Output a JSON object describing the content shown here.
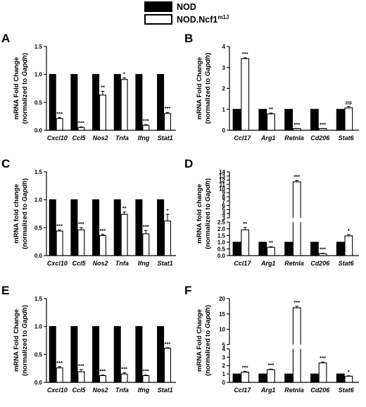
{
  "legend": {
    "items": [
      {
        "label": "NOD",
        "sup": "",
        "fill": "#000000"
      },
      {
        "label": "NOD.Ncf1",
        "sup": "m1J",
        "fill": "#ffffff"
      }
    ]
  },
  "colors": {
    "control": "#000000",
    "mutant": "#ffffff",
    "stroke": "#000000"
  },
  "chart_data": [
    {
      "panel": "A",
      "type": "bar",
      "ylabel": [
        "mRNA Fold Change",
        "(normalized to ",
        "Gapdh",
        ")"
      ],
      "categories": [
        "Cxcl10",
        "Ccl5",
        "Nos2",
        "Tnfa",
        "Ifng",
        "Stat1"
      ],
      "ylim": [
        0,
        1.5
      ],
      "yticks": [
        "0.0",
        "0.5",
        "1.0",
        "1.5"
      ],
      "ytick_values": [
        0,
        0.5,
        1.0,
        1.5
      ],
      "series": [
        {
          "name": "NOD",
          "values": [
            1,
            1,
            1,
            1,
            1,
            1
          ],
          "errors": [
            0,
            0,
            0,
            0,
            0,
            0
          ]
        },
        {
          "name": "NOD.Ncf1m1J",
          "values": [
            0.21,
            0.05,
            0.63,
            0.91,
            0.09,
            0.3
          ],
          "errors": [
            0.02,
            0.01,
            0.07,
            0.03,
            0.01,
            0.02
          ]
        }
      ],
      "significance": [
        "***",
        "***",
        "**",
        "*",
        "***",
        "***"
      ]
    },
    {
      "panel": "B",
      "type": "bar",
      "ylabel": [
        "mRNA Fold Change",
        "(normalized to ",
        "Gapdh",
        ")"
      ],
      "categories": [
        "Ccl17",
        "Arg1",
        "Retnla",
        "Cd206",
        "Stat6"
      ],
      "ylim": [
        0,
        4
      ],
      "yticks": [
        "0",
        "1",
        "2",
        "3",
        "4"
      ],
      "ytick_values": [
        0,
        1,
        2,
        3,
        4
      ],
      "series": [
        {
          "name": "NOD",
          "values": [
            1,
            1,
            1,
            1,
            1
          ],
          "errors": [
            0,
            0,
            0,
            0,
            0
          ]
        },
        {
          "name": "NOD.Ncf1m1J",
          "values": [
            3.42,
            0.78,
            0.08,
            0.08,
            1.07
          ],
          "errors": [
            0.04,
            0.04,
            0.01,
            0.01,
            0.06
          ]
        }
      ],
      "significance": [
        "***",
        "**",
        "***",
        "***",
        "ns"
      ]
    },
    {
      "panel": "C",
      "type": "bar",
      "ylabel": [
        "mRNA fold change",
        "(normalized to ",
        "Gapdh",
        ")"
      ],
      "categories": [
        "Cxcl10",
        "Ccl5",
        "Nos2",
        "Tnfa",
        "Ifng",
        "Stat1"
      ],
      "ylim": [
        0,
        1.5
      ],
      "yticks": [
        "0.0",
        "0.5",
        "1.0",
        "1.5"
      ],
      "ytick_values": [
        0,
        0.5,
        1.0,
        1.5
      ],
      "series": [
        {
          "name": "NOD",
          "values": [
            1,
            1,
            1,
            1,
            1,
            1
          ],
          "errors": [
            0,
            0,
            0,
            0,
            0,
            0
          ]
        },
        {
          "name": "NOD.Ncf1m1J",
          "values": [
            0.44,
            0.46,
            0.36,
            0.74,
            0.39,
            0.62
          ],
          "errors": [
            0.02,
            0.04,
            0.02,
            0.04,
            0.06,
            0.12
          ]
        }
      ],
      "significance": [
        "***",
        "***",
        "***",
        "**",
        "***",
        "*"
      ]
    },
    {
      "panel": "D",
      "type": "bar",
      "ylabel": [
        "mRNA fold change",
        "(normalized to ",
        "Gapdh",
        ")"
      ],
      "categories": [
        "Ccl17",
        "Arg1",
        "Retnla",
        "Cd206",
        "Stat6"
      ],
      "ylim": [
        0,
        14
      ],
      "y_break": [
        2.5,
        3
      ],
      "yticks": [
        "0.0",
        "0.5",
        "1.0",
        "1.5",
        "2.0",
        "2.5",
        "3",
        "4",
        "5",
        "6",
        "7",
        "8",
        "9",
        "10",
        "11",
        "12",
        "13",
        "14"
      ],
      "ytick_values": [
        0,
        0.5,
        1.0,
        1.5,
        2.0,
        2.5,
        3,
        4,
        5,
        6,
        7,
        8,
        9,
        10,
        11,
        12,
        13,
        14
      ],
      "series": [
        {
          "name": "NOD",
          "values": [
            1,
            1,
            1,
            1,
            1
          ],
          "errors": [
            0,
            0,
            0,
            0,
            0
          ]
        },
        {
          "name": "NOD.Ncf1m1J",
          "values": [
            1.92,
            0.62,
            11.6,
            0.15,
            1.47
          ],
          "errors": [
            0.18,
            0.05,
            0.3,
            0.03,
            0.1
          ]
        }
      ],
      "significance": [
        "**",
        "**",
        "***",
        "***",
        "*"
      ]
    },
    {
      "panel": "E",
      "type": "bar",
      "ylabel": [
        "mRNA Fold Change",
        "(normalized to ",
        "Gapdh",
        ")"
      ],
      "categories": [
        "Cxcl10",
        "Ccl5",
        "Nos2",
        "Tnfa",
        "Ifng",
        "Stat1"
      ],
      "ylim": [
        0,
        1.5
      ],
      "yticks": [
        "0.0",
        "0.5",
        "1.0",
        "1.5"
      ],
      "ytick_values": [
        0,
        0.5,
        1.0,
        1.5
      ],
      "series": [
        {
          "name": "NOD",
          "values": [
            1,
            1,
            1,
            1,
            1,
            1
          ],
          "errors": [
            0,
            0,
            0,
            0,
            0,
            0
          ]
        },
        {
          "name": "NOD.Ncf1m1J",
          "values": [
            0.26,
            0.19,
            0.12,
            0.15,
            0.12,
            0.61
          ],
          "errors": [
            0.02,
            0.04,
            0.01,
            0.02,
            0.01,
            0.01
          ]
        }
      ],
      "significance": [
        "***",
        "***",
        "***",
        "***",
        "***",
        "***"
      ]
    },
    {
      "panel": "F",
      "type": "bar",
      "ylabel": [
        "mRNA Fold Change",
        "(normalized to ",
        "Gapdh",
        ")"
      ],
      "categories": [
        "Ccl17",
        "Arg1",
        "Retnla",
        "Cd206",
        "Stat6"
      ],
      "ylim": [
        0,
        20
      ],
      "y_break": [
        4,
        5
      ],
      "yticks": [
        "0",
        "1",
        "2",
        "3",
        "4",
        "5",
        "10",
        "15",
        "20"
      ],
      "ytick_values": [
        0,
        1,
        2,
        3,
        4,
        5,
        10,
        15,
        20
      ],
      "series": [
        {
          "name": "NOD",
          "values": [
            1,
            1,
            1,
            1,
            1
          ],
          "errors": [
            0,
            0,
            0,
            0,
            0
          ]
        },
        {
          "name": "NOD.Ncf1m1J",
          "values": [
            1.22,
            1.52,
            17.0,
            2.33,
            0.73
          ],
          "errors": [
            0.1,
            0.06,
            0.5,
            0.1,
            0.05
          ]
        }
      ],
      "significance": [
        "***",
        "***",
        "***",
        "***",
        "*"
      ]
    }
  ]
}
